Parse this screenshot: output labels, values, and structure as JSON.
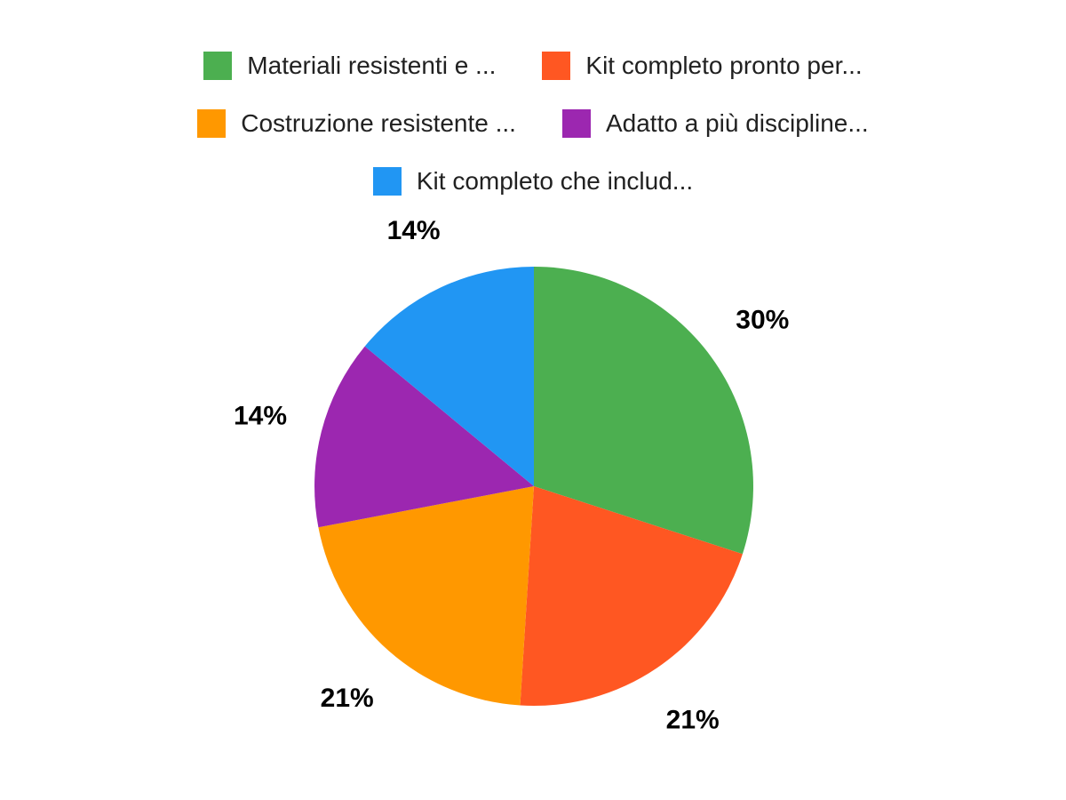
{
  "page": {
    "background": "#ffffff"
  },
  "chart_data": {
    "type": "pie",
    "title": "",
    "categories": [
      "Materiali resistenti e ...",
      "Kit completo pronto per...",
      "Costruzione resistente ...",
      "Adatto a più discipline...",
      "Kit completo che includ..."
    ],
    "values": [
      30,
      21,
      21,
      14,
      14
    ],
    "slice_labels": [
      "30%",
      "21%",
      "21%",
      "14%",
      "14%"
    ],
    "colors": [
      "#4CAF50",
      "#FF5722",
      "#FF9800",
      "#9C27B0",
      "#2196F3"
    ],
    "label_color": "#000000",
    "legend_text_color": "#212121",
    "legend": {
      "position": "top",
      "rows": [
        [
          0,
          1
        ],
        [
          2,
          3
        ],
        [
          4
        ]
      ]
    },
    "start_angle_deg": 0,
    "direction": "clockwise",
    "grid": false
  }
}
